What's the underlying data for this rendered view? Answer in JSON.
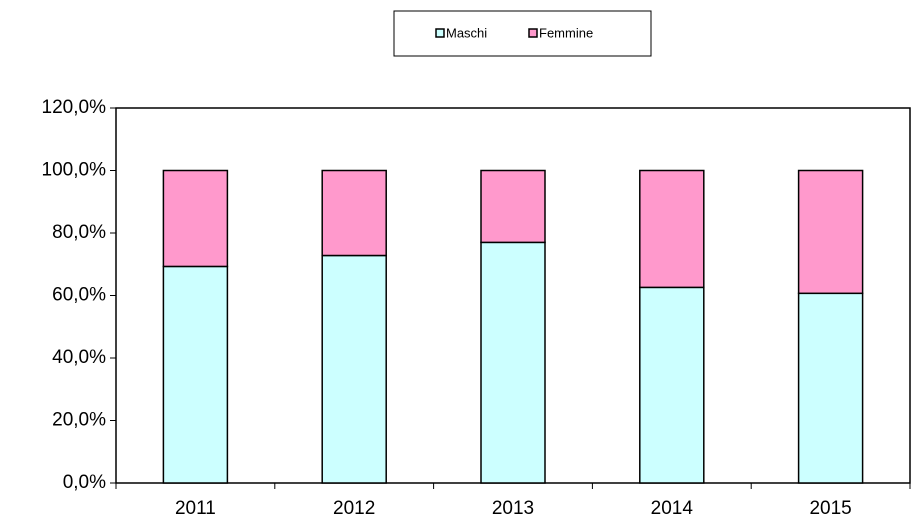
{
  "chart_data": {
    "type": "bar",
    "stacked": true,
    "categories": [
      "2011",
      "2012",
      "2013",
      "2014",
      "2015"
    ],
    "series": [
      {
        "name": "Maschi",
        "color": "#ccffff",
        "values": [
          69.3,
          72.8,
          77.0,
          62.6,
          60.7
        ]
      },
      {
        "name": "Femmine",
        "color": "#ff99cc",
        "values": [
          30.7,
          27.2,
          23.0,
          37.4,
          39.3
        ]
      }
    ],
    "ylim": [
      0,
      120
    ],
    "yticks": [
      {
        "value": 0,
        "label": "0,0%"
      },
      {
        "value": 20,
        "label": "20,0%"
      },
      {
        "value": 40,
        "label": "40,0%"
      },
      {
        "value": 60,
        "label": "60,0%"
      },
      {
        "value": 80,
        "label": "80,0%"
      },
      {
        "value": 100,
        "label": "100,0%"
      },
      {
        "value": 120,
        "label": "120,0%"
      }
    ],
    "legend": "top"
  }
}
